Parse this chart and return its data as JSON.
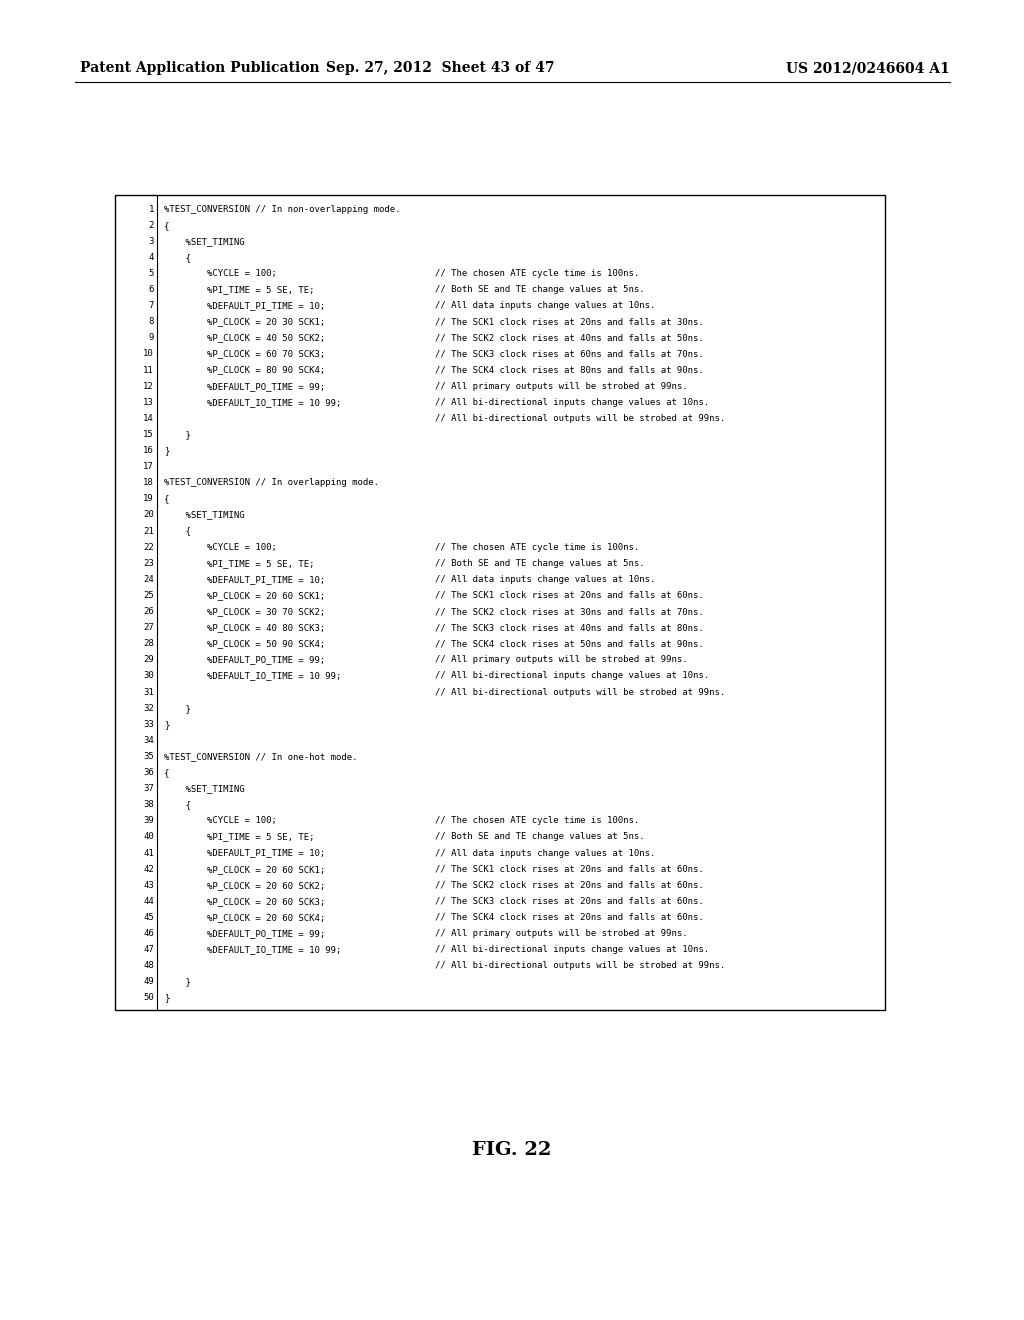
{
  "header_left": "Patent Application Publication",
  "header_center": "Sep. 27, 2012  Sheet 43 of 47",
  "header_right": "US 2012/0246604 A1",
  "figure_label": "FIG. 22",
  "bg_color": "#ffffff",
  "code_lines": [
    [
      "1",
      "%TEST_CONVERSION // In non-overlapping mode.",
      ""
    ],
    [
      "2",
      "{",
      ""
    ],
    [
      "3",
      "    %SET_TIMING",
      ""
    ],
    [
      "4",
      "    {",
      ""
    ],
    [
      "5",
      "        %CYCLE = 100;",
      "// The chosen ATE cycle time is 100ns."
    ],
    [
      "6",
      "        %PI_TIME = 5 SE, TE;",
      "// Both SE and TE change values at 5ns."
    ],
    [
      "7",
      "        %DEFAULT_PI_TIME = 10;",
      "// All data inputs change values at 10ns."
    ],
    [
      "8",
      "        %P_CLOCK = 20 30 SCK1;",
      "// The SCK1 clock rises at 20ns and falls at 30ns."
    ],
    [
      "9",
      "        %P_CLOCK = 40 50 SCK2;",
      "// The SCK2 clock rises at 40ns and falls at 50ns."
    ],
    [
      "10",
      "        %P_CLOCK = 60 70 SCK3;",
      "// The SCK3 clock rises at 60ns and falls at 70ns."
    ],
    [
      "11",
      "        %P_CLOCK = 80 90 SCK4;",
      "// The SCK4 clock rises at 80ns and falls at 90ns."
    ],
    [
      "12",
      "        %DEFAULT_PO_TIME = 99;",
      "// All primary outputs will be strobed at 99ns."
    ],
    [
      "13",
      "        %DEFAULT_IO_TIME = 10 99;",
      "// All bi-directional inputs change values at 10ns."
    ],
    [
      "14",
      "",
      "// All bi-directional outputs will be strobed at 99ns."
    ],
    [
      "15",
      "    }",
      ""
    ],
    [
      "16",
      "}",
      ""
    ],
    [
      "17",
      "",
      ""
    ],
    [
      "18",
      "%TEST_CONVERSION // In overlapping mode.",
      ""
    ],
    [
      "19",
      "{",
      ""
    ],
    [
      "20",
      "    %SET_TIMING",
      ""
    ],
    [
      "21",
      "    {",
      ""
    ],
    [
      "22",
      "        %CYCLE = 100;",
      "// The chosen ATE cycle time is 100ns."
    ],
    [
      "23",
      "        %PI_TIME = 5 SE, TE;",
      "// Both SE and TE change values at 5ns."
    ],
    [
      "24",
      "        %DEFAULT_PI_TIME = 10;",
      "// All data inputs change values at 10ns."
    ],
    [
      "25",
      "        %P_CLOCK = 20 60 SCK1;",
      "// The SCK1 clock rises at 20ns and falls at 60ns."
    ],
    [
      "26",
      "        %P_CLOCK = 30 70 SCK2;",
      "// The SCK2 clock rises at 30ns and falls at 70ns."
    ],
    [
      "27",
      "        %P_CLOCK = 40 80 SCK3;",
      "// The SCK3 clock rises at 40ns and falls at 80ns."
    ],
    [
      "28",
      "        %P_CLOCK = 50 90 SCK4;",
      "// The SCK4 clock rises at 50ns and falls at 90ns."
    ],
    [
      "29",
      "        %DEFAULT_PO_TIME = 99;",
      "// All primary outputs will be strobed at 99ns."
    ],
    [
      "30",
      "        %DEFAULT_IO_TIME = 10 99;",
      "// All bi-directional inputs change values at 10ns."
    ],
    [
      "31",
      "",
      "// All bi-directional outputs will be strobed at 99ns."
    ],
    [
      "32",
      "    }",
      ""
    ],
    [
      "33",
      "}",
      ""
    ],
    [
      "34",
      "",
      ""
    ],
    [
      "35",
      "%TEST_CONVERSION // In one-hot mode.",
      ""
    ],
    [
      "36",
      "{",
      ""
    ],
    [
      "37",
      "    %SET_TIMING",
      ""
    ],
    [
      "38",
      "    {",
      ""
    ],
    [
      "39",
      "        %CYCLE = 100;",
      "// The chosen ATE cycle time is 100ns."
    ],
    [
      "40",
      "        %PI_TIME = 5 SE, TE;",
      "// Both SE and TE change values at 5ns."
    ],
    [
      "41",
      "        %DEFAULT_PI_TIME = 10;",
      "// All data inputs change values at 10ns."
    ],
    [
      "42",
      "        %P_CLOCK = 20 60 SCK1;",
      "// The SCK1 clock rises at 20ns and falls at 60ns."
    ],
    [
      "43",
      "        %P_CLOCK = 20 60 SCK2;",
      "// The SCK2 clock rises at 20ns and falls at 60ns."
    ],
    [
      "44",
      "        %P_CLOCK = 20 60 SCK3;",
      "// The SCK3 clock rises at 20ns and falls at 60ns."
    ],
    [
      "45",
      "        %P_CLOCK = 20 60 SCK4;",
      "// The SCK4 clock rises at 20ns and falls at 60ns."
    ],
    [
      "46",
      "        %DEFAULT_PO_TIME = 99;",
      "// All primary outputs will be strobed at 99ns."
    ],
    [
      "47",
      "        %DEFAULT_IO_TIME = 10 99;",
      "// All bi-directional inputs change values at 10ns."
    ],
    [
      "48",
      "",
      "// All bi-directional outputs will be strobed at 99ns."
    ],
    [
      "49",
      "    }",
      ""
    ],
    [
      "50",
      "}",
      ""
    ]
  ]
}
